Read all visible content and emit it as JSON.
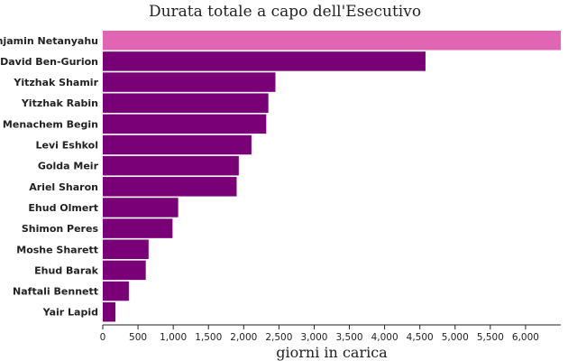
{
  "chart_data": {
    "type": "bar",
    "orientation": "horizontal",
    "title": "Durata totale a capo dell'Esecutivo",
    "xlabel": "giorni in carica",
    "ylabel": "",
    "xlim": [
      0,
      6500
    ],
    "grid": false,
    "legend": "none",
    "categories": [
      "Benjamin Netanyahu",
      "David Ben-Gurion",
      "Yitzhak Shamir",
      "Yitzhak Rabin",
      "Menachem Begin",
      "Levi Eshkol",
      "Golda Meir",
      "Ariel Sharon",
      "Ehud Olmert",
      "Shimon Peres",
      "Moshe Sharett",
      "Ehud Barak",
      "Naftali Bennett",
      "Yair Lapid"
    ],
    "values": [
      6500,
      4580,
      2450,
      2350,
      2320,
      2110,
      1930,
      1900,
      1070,
      990,
      650,
      610,
      370,
      180
    ],
    "colors": {
      "highlight": "#e066b3",
      "default": "#7a0078"
    },
    "highlight_index": 0,
    "ticks": [
      0,
      500,
      1000,
      1500,
      2000,
      2500,
      3000,
      3500,
      4000,
      4500,
      5000,
      5500,
      6000
    ],
    "tick_labels": [
      "0",
      "500",
      "1,000",
      "1,500",
      "2,000",
      "2,500",
      "3,000",
      "3,500",
      "4,000",
      "4,500",
      "5,000",
      "5,500",
      "6,000"
    ]
  }
}
